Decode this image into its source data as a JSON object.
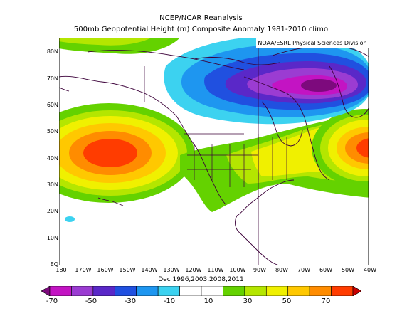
{
  "title_line1": "NCEP/NCAR Reanalysis",
  "title_line2": "500mb Geopotential Height (m) Composite Anomaly 1981-2010 climo",
  "credit": "NOAA/ESRL Physical Sciences Division",
  "subtitle": "Dec 1996,2003,2008,2011",
  "lat_labels": [
    "80N",
    "70N",
    "60N",
    "50N",
    "40N",
    "30N",
    "20N",
    "10N",
    "EQ"
  ],
  "lon_labels": [
    "180",
    "170W",
    "160W",
    "150W",
    "140W",
    "130W",
    "120W",
    "110W",
    "100W",
    "90W",
    "80W",
    "70W",
    "60W",
    "50W",
    "40W"
  ],
  "colorbar": {
    "labels": [
      "-70",
      "-50",
      "-30",
      "-10",
      "10",
      "30",
      "50",
      "70"
    ],
    "colors": [
      "#7d0a7d",
      "#c314c3",
      "#9b3cd2",
      "#5a28c8",
      "#2050e0",
      "#1e96f0",
      "#3cd2f0",
      "#ffffff",
      "#ffffff",
      "#64d200",
      "#b4e600",
      "#f0f000",
      "#ffc800",
      "#ff8c00",
      "#ff3c00",
      "#c80000"
    ]
  },
  "map": {
    "region": "North Pacific / North America / North Atlantic",
    "lon_range": [
      "180",
      "40W"
    ],
    "lat_range": [
      "EQ",
      "85N"
    ],
    "features": [
      {
        "name": "positive anomaly centre North Pacific",
        "peak_color": "#ff3c00"
      },
      {
        "name": "negative anomaly centre Canada/Baffin",
        "peak_color": "#7d0a7d"
      },
      {
        "name": "positive anomaly western North Atlantic",
        "peak_color": "#ff3c00"
      }
    ]
  }
}
